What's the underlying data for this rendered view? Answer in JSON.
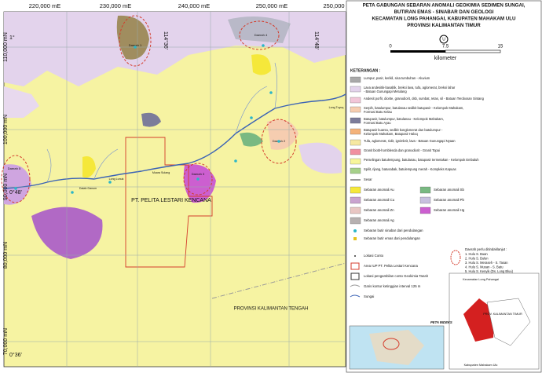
{
  "title": [
    "PETA GABUNGAN SEBARAN ANOMALI GEOKIMIA SEDIMEN SUNGAI,",
    "BUTIRAN EMAS - SINABAR DAN GEOLOGI",
    "KECAMATAN LONG PAHANGAI, KABUPATEN MAHAKAM ULU",
    "PROVINSI KALIMANTAN TIMUR"
  ],
  "scale": {
    "labels": [
      "0",
      "7.5",
      "15"
    ],
    "unit": "kilometer",
    "north": "U"
  },
  "map": {
    "x_labels": [
      "220,000 mE",
      "230,000 mE",
      "240,000 mE",
      "250,000 mE",
      "250,000"
    ],
    "y_labels": [
      "110,000 mN",
      "100,000 mN",
      "90,000 mN",
      "80,000 mN",
      "70,000 mN"
    ],
    "coord_labels": [
      "1°",
      "0°48'",
      "0°36'",
      "114°36'",
      "114°48'"
    ],
    "areas": [
      "Daerah 4",
      "Daerah 1",
      "Daerah 2",
      "Daerah 3",
      "Daerah 5"
    ],
    "concession": "PT. PELITA LESTARI KENCANA",
    "province": "PROVINSI KALIMANTAN TENGAH",
    "villages": [
      "Long Tuyoq",
      "Muara Sulang",
      "Long Lunuk",
      "Datah Danum"
    ]
  },
  "legend": {
    "heading": "KETERANGAN :",
    "geology": [
      {
        "lines": [
          "Lumpur, pasir, kerikil, sisa tumbuhan - Aluvium"
        ],
        "color": "#a9a9a9"
      },
      {
        "lines": [
          "Lava andesitik-basaltik, breksi lava, tufa, aglomerat, breksi lahar",
          "- Batuan Gunungapi Metulang"
        ],
        "color": "#e3d3ec"
      },
      {
        "lines": [
          "Andesit porfir, diorite, granodiorit, dsb, sumbat, retas, sil - Batuan Terobosan Sintang"
        ],
        "color": "#f2c6d8"
      },
      {
        "lines": [
          "Serpih, batulumpur, batulanau sedikit batupasir - Kelompok Mahakam,",
          "Formasi Batu Kelau"
        ],
        "color": "#f6cdb0"
      },
      {
        "lines": [
          "Batupasir, batulumpur, batulanau - Kelompok Mahakam,",
          "Formasi Batu Ayau"
        ],
        "color": "#7c7c9a"
      },
      {
        "lines": [
          "Batupasir kuarsa, sedikit konglomerat dan batulumpur -",
          "Kelompok Mahakam, Batupasir Haloq"
        ],
        "color": "#f4b27a"
      },
      {
        "lines": [
          "Tufa, aglomerat, riolit, ignimbrit, lava - Batuan Gunungapi Nyaan"
        ],
        "color": "#f6e8a0"
      },
      {
        "lines": [
          "Granit biotit-hornblenda dan granodiorit - Granit Topai"
        ],
        "color": "#f08fa0"
      },
      {
        "lines": [
          "Perselingan batulempung, batulanau, batupasir termetakan - Kelompok Embaluh"
        ],
        "color": "#f7f59a"
      },
      {
        "lines": [
          "Spilit, rijang, batusabak, batulempung merah - Kompleks Kapuas"
        ],
        "color": "#a6d08a"
      }
    ],
    "fault": "Sesar",
    "anomalies": [
      {
        "label": "Sebaran anomali Au",
        "color": "#f5e83a"
      },
      {
        "label": "Sebaran anomali Sb",
        "color": "#79b982"
      },
      {
        "label": "Sebaran anomali Cu",
        "color": "#c9a3cf"
      },
      {
        "label": "Sebaran anomali Pb",
        "color": "#c7c0df"
      },
      {
        "label": "Sebaran anomali Zn",
        "color": "#e8c6c3"
      },
      {
        "label": "Sebaran anomali Hg",
        "color": "#cc5fd0"
      },
      {
        "label": "Sebaran anomali Ag",
        "color": "#b6b0b0"
      }
    ],
    "symbols": [
      "Sebaran butir sinabar dari pendulangan",
      "Sebaran butir emas dari pendulangan",
      "Lokasi Conto",
      "Area IUP PT. Pelita Lestari Kencana",
      "Lokasi pengambilan conto Geokimia Tanah",
      "Garis kontur ketinggian interval 125 m",
      "Sungai"
    ],
    "target_heading": "Daerah perlu ditindaklanjut :",
    "targets": [
      "1. Hulu S. Buan",
      "2. Hulu S. Bulun",
      "3. Hulu S. Meraseh - S. Tasan",
      "4. Hulu S. Musan - S. Batu",
      "5. Hulu S. Kenyik (Ds. Long Bluu)"
    ]
  },
  "inset": {
    "title": "PETA INDEKS",
    "labels": [
      "Kecamatan Long Pahangai",
      "PROV. KALIMANTAN TIMUR",
      "Kabupaten Mahakam Ulu"
    ]
  }
}
